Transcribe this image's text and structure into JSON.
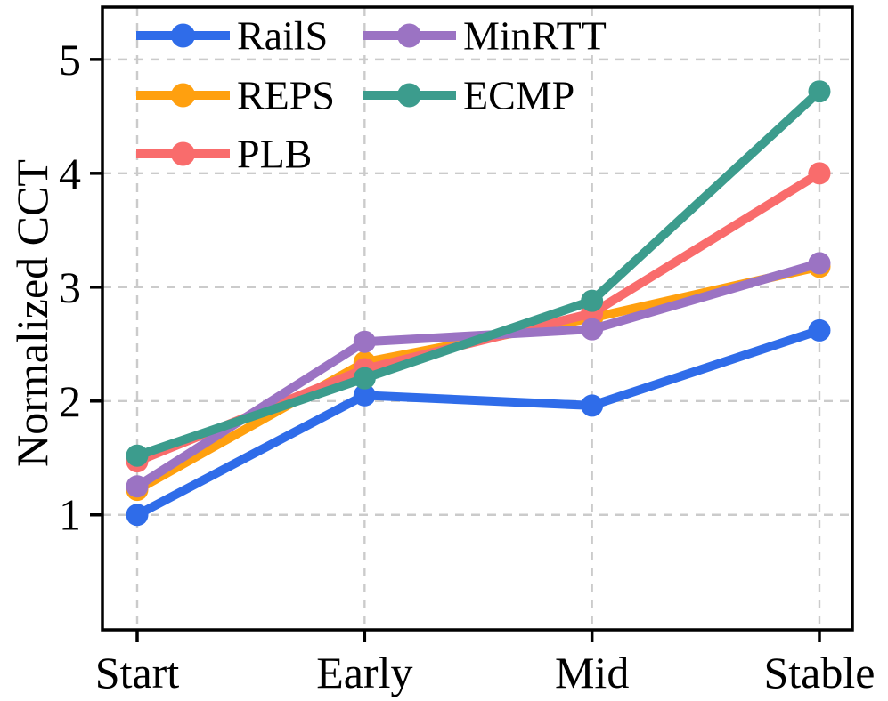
{
  "chart_data": {
    "type": "line",
    "title": "",
    "xlabel": "",
    "ylabel": "Normalized CCT",
    "categories": [
      "Start",
      "Early",
      "Mid",
      "Stable"
    ],
    "y_ticks": [
      "1",
      "2",
      "3",
      "4",
      "5"
    ],
    "ylim": [
      -0.01,
      5.46
    ],
    "grid": "dashed gray, horizontal and vertical",
    "legend_position": "upper left, two columns, no frame",
    "legend_columns": [
      [
        "RailS",
        "REPS",
        "PLB"
      ],
      [
        "MinRTT",
        "ECMP"
      ]
    ],
    "series": [
      {
        "name": "RailS",
        "color": "#2f6ce9",
        "values": [
          1.0,
          2.05,
          1.96,
          2.62
        ]
      },
      {
        "name": "REPS",
        "color": "#ffa00f",
        "values": [
          1.22,
          2.34,
          2.73,
          3.18
        ]
      },
      {
        "name": "PLB",
        "color": "#f96c6c",
        "values": [
          1.47,
          2.28,
          2.77,
          4.0
        ]
      },
      {
        "name": "MinRTT",
        "color": "#9b73c3",
        "values": [
          1.25,
          2.52,
          2.63,
          3.21
        ]
      },
      {
        "name": "ECMP",
        "color": "#3c9c8d",
        "values": [
          1.52,
          2.2,
          2.88,
          4.72
        ]
      }
    ],
    "style_colors": {
      "grid": "#cbcbcb",
      "axis": "#000000"
    }
  }
}
